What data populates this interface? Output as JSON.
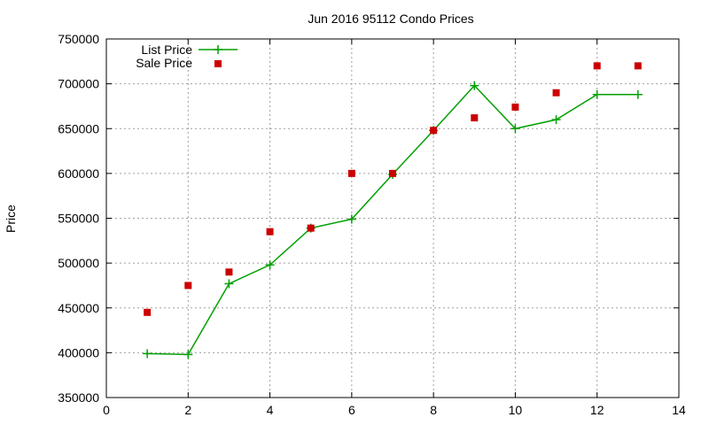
{
  "chart_data": {
    "type": "line",
    "title": "Jun 2016 95112 Condo Prices",
    "xlabel": "",
    "ylabel": "Price",
    "xlim": [
      0,
      14
    ],
    "ylim": [
      350000,
      750000
    ],
    "x_ticks": [
      0,
      2,
      4,
      6,
      8,
      10,
      12,
      14
    ],
    "y_ticks": [
      350000,
      400000,
      450000,
      500000,
      550000,
      600000,
      650000,
      700000,
      750000
    ],
    "x_tick_labels": [
      "0",
      "2",
      "4",
      "6",
      "8",
      "10",
      "12",
      "14"
    ],
    "y_tick_labels": [
      "350000",
      "400000",
      "450000",
      "500000",
      "550000",
      "600000",
      "650000",
      "700000",
      "750000"
    ],
    "grid": true,
    "legend_position": "top-left",
    "series": [
      {
        "name": "List Price",
        "style": "line+cross",
        "color": "#00a000",
        "x": [
          1,
          2,
          3,
          4,
          5,
          6,
          7,
          8,
          9,
          10,
          11,
          12,
          13
        ],
        "y": [
          399000,
          398000,
          477000,
          498000,
          539000,
          549000,
          599000,
          648000,
          698000,
          650000,
          660000,
          688000,
          688000
        ]
      },
      {
        "name": "Sale Price",
        "style": "square",
        "color": "#cc0000",
        "x": [
          1,
          2,
          3,
          4,
          5,
          6,
          7,
          8,
          9,
          10,
          11,
          12,
          13
        ],
        "y": [
          445000,
          475000,
          490000,
          535000,
          539000,
          600000,
          600000,
          648000,
          662000,
          674000,
          690000,
          720000,
          720000
        ]
      }
    ]
  }
}
